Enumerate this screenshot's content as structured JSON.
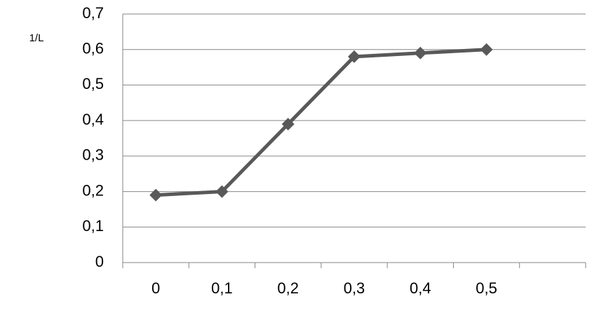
{
  "chart_data": {
    "type": "line",
    "y_label": "1/L",
    "categories": [
      "0",
      "0,1",
      "0,2",
      "0,3",
      "0,4",
      "0,5",
      null
    ],
    "series": [
      {
        "color": "#595959",
        "values": [
          0.19,
          0.2,
          0.39,
          0.58,
          0.59,
          0.6,
          null
        ]
      }
    ],
    "ylim": [
      0,
      0.7
    ],
    "yticks": [
      0,
      {
        "value": 0.1,
        "label": "0,1"
      },
      {
        "value": 0.2,
        "label": "0,2"
      },
      {
        "value": 0.3,
        "label": "0,3"
      },
      {
        "value": 0.4,
        "label": "0,4"
      },
      {
        "value": 0.5,
        "label": "0,5"
      },
      {
        "value": 0.6,
        "label": "0,6"
      },
      {
        "value": 0.7,
        "label": "0,7"
      }
    ],
    "grid": true
  }
}
